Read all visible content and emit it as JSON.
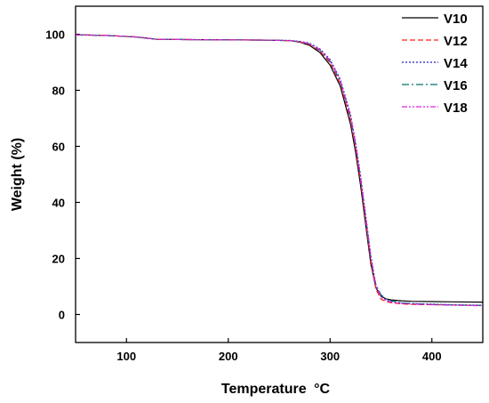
{
  "chart_data": {
    "type": "line",
    "xlabel": "Temperature",
    "xlabel_unit": "°C",
    "ylabel": "Weight (%)",
    "xlim": [
      50,
      450
    ],
    "ylim": [
      -10,
      110
    ],
    "xticks": [
      100,
      200,
      300,
      400
    ],
    "yticks": [
      0,
      20,
      40,
      60,
      80,
      100
    ],
    "grid": false,
    "legend_position": "top-right",
    "series": [
      {
        "name": "V10",
        "color": "#000000",
        "dash": "solid",
        "x": [
          50,
          80,
          110,
          130,
          160,
          200,
          240,
          260,
          270,
          280,
          290,
          300,
          310,
          320,
          325,
          330,
          335,
          340,
          345,
          350,
          355,
          360,
          370,
          380,
          400,
          420,
          450
        ],
        "y": [
          99.8,
          99.6,
          99.0,
          98.2,
          98.1,
          98.0,
          97.9,
          97.7,
          97.2,
          96.0,
          93.5,
          89.0,
          81.5,
          68.0,
          58.0,
          46.0,
          32.0,
          18.0,
          9.5,
          6.5,
          5.6,
          5.2,
          4.9,
          4.7,
          4.6,
          4.5,
          4.4
        ]
      },
      {
        "name": "V12",
        "color": "#ff2020",
        "dash": "6 3",
        "x": [
          50,
          80,
          110,
          130,
          160,
          200,
          240,
          260,
          270,
          280,
          290,
          300,
          310,
          320,
          325,
          330,
          335,
          340,
          345,
          350,
          355,
          360,
          370,
          380,
          400,
          420,
          450
        ],
        "y": [
          99.8,
          99.6,
          99.0,
          98.2,
          98.1,
          98.0,
          97.9,
          97.7,
          97.3,
          96.3,
          94.0,
          89.8,
          82.5,
          69.5,
          59.5,
          47.5,
          33.5,
          19.0,
          9.0,
          5.5,
          4.6,
          4.2,
          3.8,
          3.6,
          3.5,
          3.4,
          3.2
        ]
      },
      {
        "name": "V14",
        "color": "#2020c0",
        "dash": "2 2",
        "x": [
          50,
          80,
          110,
          130,
          160,
          200,
          240,
          260,
          270,
          280,
          290,
          300,
          310,
          320,
          325,
          330,
          335,
          340,
          345,
          350,
          355,
          360,
          370,
          380,
          400,
          420,
          450
        ],
        "y": [
          99.8,
          99.6,
          99.0,
          98.2,
          98.1,
          98.0,
          97.9,
          97.8,
          97.5,
          96.8,
          94.8,
          91.0,
          84.0,
          71.5,
          61.5,
          49.5,
          35.5,
          21.0,
          10.5,
          6.5,
          5.2,
          4.6,
          4.1,
          3.9,
          3.7,
          3.5,
          3.3
        ]
      },
      {
        "name": "V16",
        "color": "#007070",
        "dash": "8 3 2 3",
        "x": [
          50,
          80,
          110,
          130,
          160,
          200,
          240,
          260,
          270,
          280,
          290,
          300,
          310,
          320,
          325,
          330,
          335,
          340,
          345,
          350,
          355,
          360,
          370,
          380,
          400,
          420,
          450
        ],
        "y": [
          99.8,
          99.6,
          99.0,
          98.2,
          98.1,
          98.0,
          97.9,
          97.7,
          97.4,
          96.5,
          94.3,
          90.3,
          83.2,
          70.5,
          60.5,
          48.5,
          34.5,
          20.0,
          10.5,
          7.0,
          5.6,
          4.9,
          4.2,
          3.9,
          3.6,
          3.4,
          3.2
        ]
      },
      {
        "name": "V18",
        "color": "#e020e0",
        "dash": "6 2 2 2 2 2",
        "x": [
          50,
          80,
          110,
          130,
          160,
          200,
          240,
          260,
          270,
          280,
          290,
          300,
          310,
          320,
          325,
          330,
          335,
          340,
          345,
          350,
          355,
          360,
          370,
          380,
          400,
          420,
          450
        ],
        "y": [
          99.8,
          99.6,
          99.0,
          98.2,
          98.1,
          98.0,
          97.9,
          97.7,
          97.4,
          96.6,
          94.5,
          90.6,
          83.6,
          71.0,
          61.0,
          49.0,
          35.0,
          20.5,
          10.0,
          6.3,
          5.0,
          4.4,
          3.9,
          3.7,
          3.5,
          3.3,
          3.1
        ]
      }
    ]
  }
}
